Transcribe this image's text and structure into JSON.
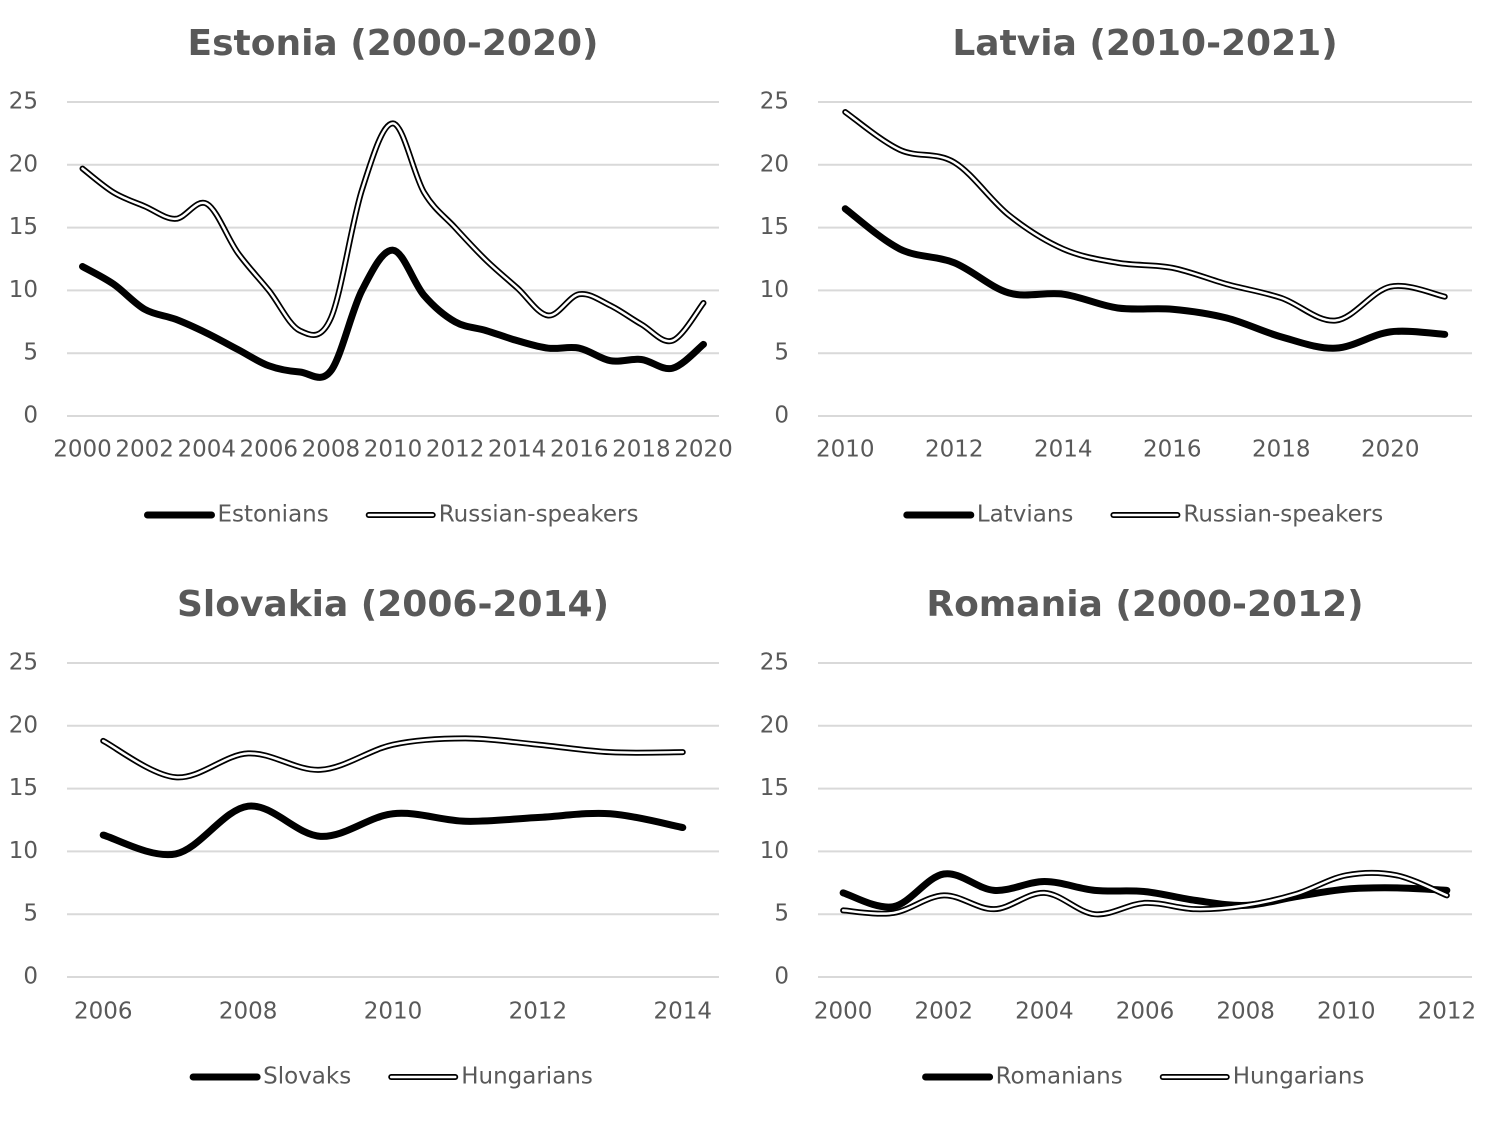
{
  "chart_data": [
    {
      "type": "line",
      "title": "Estonia (2000-2020)",
      "categories": [
        "2000",
        null,
        "2002",
        null,
        "2004",
        null,
        "2006",
        null,
        "2008",
        null,
        "2010",
        null,
        "2012",
        null,
        "2014",
        null,
        "2016",
        null,
        "2018",
        null,
        "2020"
      ],
      "series": [
        {
          "name": "Estonians",
          "color": "#000000",
          "line_style": "solid",
          "values": [
            11.9,
            10.5,
            8.5,
            7.7,
            6.6,
            5.3,
            4.0,
            3.5,
            3.6,
            10.0,
            13.2,
            9.6,
            7.5,
            6.8,
            6.0,
            5.4,
            5.4,
            4.4,
            4.5,
            3.8,
            5.7
          ]
        },
        {
          "name": "Russian-speakers",
          "color": "#000000",
          "line_style": "double",
          "values": [
            19.7,
            17.8,
            16.7,
            15.7,
            16.9,
            13.0,
            10.0,
            6.8,
            7.8,
            18.0,
            23.3,
            17.8,
            15.0,
            12.4,
            10.2,
            8.0,
            9.7,
            8.8,
            7.3,
            6.0,
            9.0
          ]
        }
      ],
      "ylim": [
        0,
        25
      ],
      "yticks": [
        0,
        5,
        10,
        15,
        20,
        25
      ],
      "grid": true,
      "legend": "bottom"
    },
    {
      "type": "line",
      "title": "Latvia (2010-2021)",
      "categories": [
        "2010",
        null,
        "2012",
        null,
        "2014",
        null,
        "2016",
        null,
        "2018",
        null,
        "2020",
        null
      ],
      "series": [
        {
          "name": "Latvians",
          "color": "#000000",
          "line_style": "solid",
          "values": [
            16.5,
            13.3,
            12.2,
            9.8,
            9.7,
            8.6,
            8.5,
            7.8,
            6.3,
            5.4,
            6.7,
            6.5
          ]
        },
        {
          "name": "Russian-speakers",
          "color": "#000000",
          "line_style": "double",
          "values": [
            24.2,
            21.2,
            20.2,
            16.0,
            13.3,
            12.2,
            11.8,
            10.5,
            9.4,
            7.6,
            10.3,
            9.5
          ]
        }
      ],
      "ylim": [
        0,
        25
      ],
      "yticks": [
        0,
        5,
        10,
        15,
        20,
        25
      ],
      "grid": true,
      "legend": "bottom"
    },
    {
      "type": "line",
      "title": "Slovakia (2006-2014)",
      "categories": [
        "2006",
        null,
        "2008",
        null,
        "2010",
        null,
        "2012",
        null,
        "2014"
      ],
      "series": [
        {
          "name": "Slovaks",
          "color": "#000000",
          "line_style": "solid",
          "values": [
            11.3,
            9.8,
            13.6,
            11.2,
            13.0,
            12.4,
            12.7,
            13.0,
            11.9
          ]
        },
        {
          "name": "Hungarians",
          "color": "#000000",
          "line_style": "double",
          "values": [
            18.8,
            15.9,
            17.8,
            16.5,
            18.5,
            19.0,
            18.5,
            17.9,
            17.9
          ]
        }
      ],
      "ylim": [
        0,
        25
      ],
      "yticks": [
        0,
        5,
        10,
        15,
        20,
        25
      ],
      "grid": true,
      "legend": "bottom"
    },
    {
      "type": "line",
      "title": "Romania (2000-2012)",
      "categories": [
        "2000",
        null,
        "2002",
        null,
        "2004",
        null,
        "2006",
        null,
        "2008",
        null,
        "2010",
        null,
        "2012"
      ],
      "series": [
        {
          "name": "Romanians",
          "color": "#000000",
          "line_style": "solid",
          "values": [
            6.7,
            5.6,
            8.2,
            6.9,
            7.6,
            6.9,
            6.8,
            6.1,
            5.7,
            6.4,
            7.0,
            7.1,
            6.9
          ]
        },
        {
          "name": "Hungarians",
          "color": "#000000",
          "line_style": "double",
          "values": [
            5.3,
            5.1,
            6.5,
            5.4,
            6.7,
            5.0,
            5.9,
            5.4,
            5.7,
            6.6,
            8.1,
            8.1,
            6.5
          ]
        }
      ],
      "ylim": [
        0,
        25
      ],
      "yticks": [
        0,
        5,
        10,
        15,
        20,
        25
      ],
      "grid": true,
      "legend": "bottom"
    }
  ]
}
